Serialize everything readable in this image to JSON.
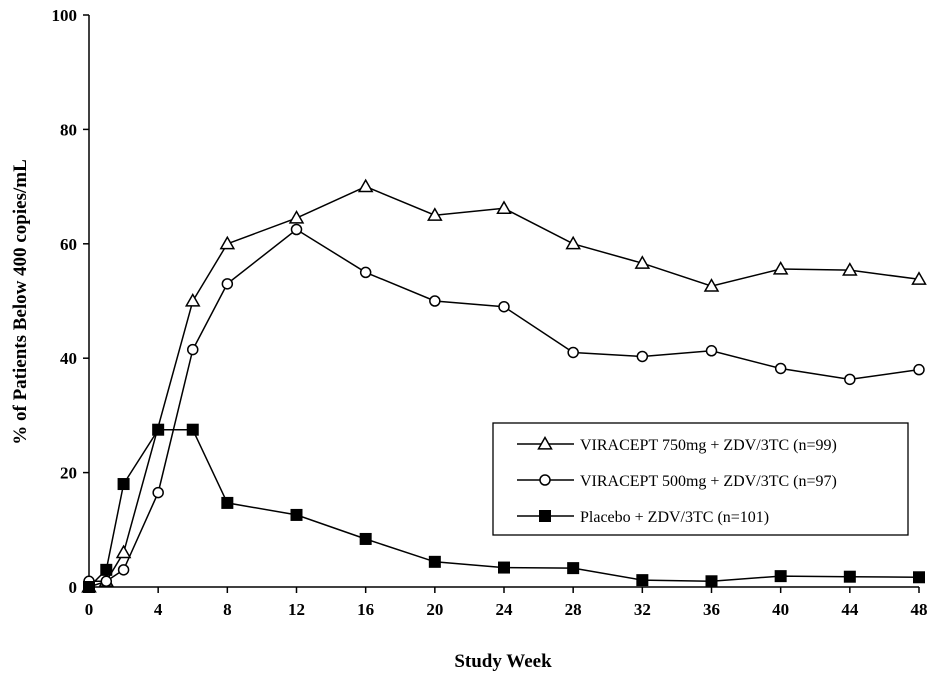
{
  "chart_data": {
    "type": "line",
    "title": "",
    "xlabel": "Study Week",
    "ylabel": "% of Patients Below 400 copies/mL",
    "xlim": [
      0,
      48
    ],
    "ylim": [
      0,
      100
    ],
    "x_ticks": [
      0,
      4,
      8,
      12,
      16,
      20,
      24,
      28,
      32,
      36,
      40,
      44,
      48
    ],
    "y_ticks": [
      0,
      20,
      40,
      60,
      80,
      100
    ],
    "grid": false,
    "legend_position": "lower-right",
    "series": [
      {
        "name": "VIRACEPT 750mg + ZDV/3TC (n=99)",
        "marker": "open-triangle",
        "color": "#000000",
        "x": [
          0,
          1,
          2,
          6,
          8,
          12,
          16,
          20,
          24,
          28,
          32,
          36,
          40,
          44,
          48
        ],
        "values": [
          0,
          1,
          6,
          50,
          60,
          64.5,
          70,
          65,
          66.2,
          60,
          56.6,
          52.6,
          55.6,
          55.4,
          53.8
        ]
      },
      {
        "name": "VIRACEPT 500mg + ZDV/3TC (n=97)",
        "marker": "open-circle",
        "color": "#000000",
        "x": [
          0,
          1,
          2,
          4,
          6,
          8,
          12,
          16,
          20,
          24,
          28,
          32,
          36,
          40,
          44,
          48
        ],
        "values": [
          1,
          1,
          3,
          16.5,
          41.5,
          53,
          62.5,
          55,
          50,
          49,
          41,
          40.3,
          41.3,
          38.2,
          36.3,
          38
        ]
      },
      {
        "name": "Placebo + ZDV/3TC (n=101)",
        "marker": "filled-square",
        "color": "#000000",
        "x": [
          0,
          1,
          2,
          4,
          6,
          8,
          12,
          16,
          20,
          24,
          28,
          32,
          36,
          40,
          44,
          48
        ],
        "values": [
          0,
          3,
          18,
          27.5,
          27.5,
          14.7,
          12.6,
          8.4,
          4.4,
          3.4,
          3.3,
          1.2,
          1,
          1.9,
          1.8,
          1.7
        ]
      }
    ]
  }
}
